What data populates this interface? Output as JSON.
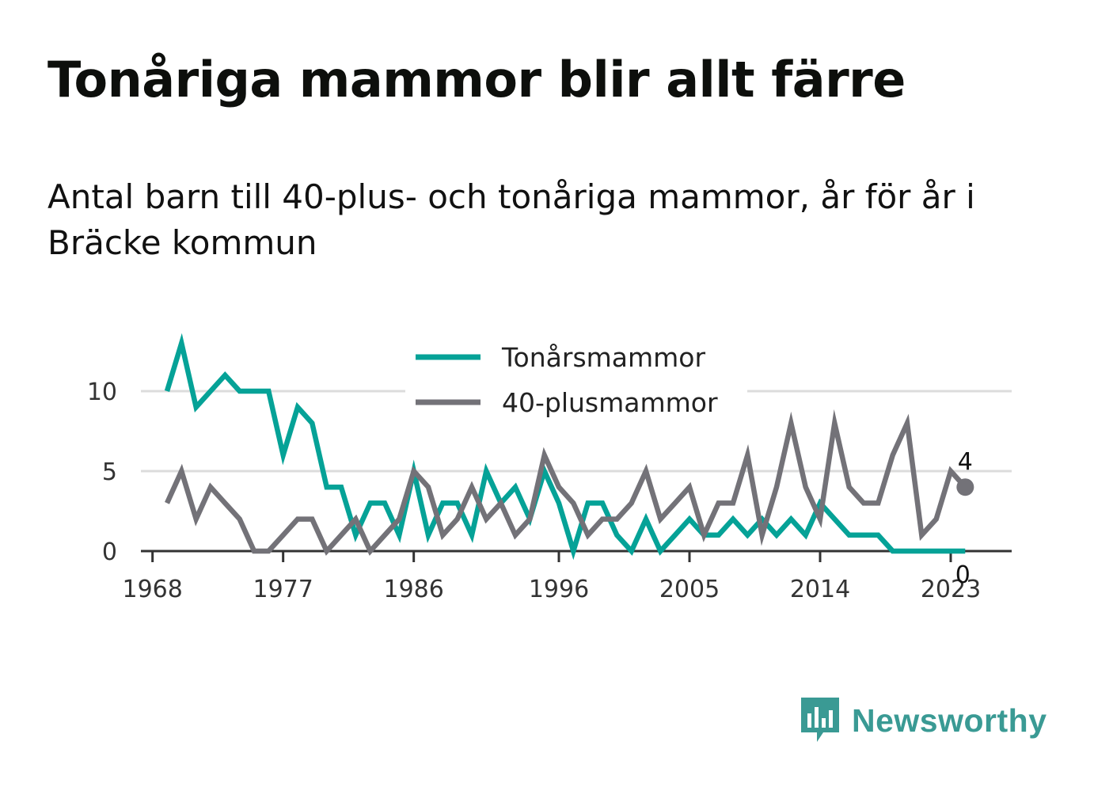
{
  "header": {
    "title": "Tonåriga mammor blir allt färre",
    "subtitle": "Antal barn till 40-plus- och tonåriga mammor, år för år i Bräcke kommun"
  },
  "brand": {
    "name": "Newsworthy",
    "color": "#3a9a94",
    "icon": "newsworthy-logo-icon"
  },
  "chart_data": {
    "type": "line",
    "x": [
      1969,
      1970,
      1971,
      1972,
      1973,
      1974,
      1975,
      1976,
      1977,
      1978,
      1979,
      1980,
      1981,
      1982,
      1983,
      1984,
      1985,
      1986,
      1987,
      1988,
      1989,
      1990,
      1991,
      1992,
      1993,
      1994,
      1995,
      1996,
      1997,
      1998,
      1999,
      2000,
      2001,
      2002,
      2003,
      2004,
      2005,
      2006,
      2007,
      2008,
      2009,
      2010,
      2011,
      2012,
      2013,
      2014,
      2015,
      2016,
      2017,
      2018,
      2019,
      2020,
      2021,
      2022,
      2023,
      2024
    ],
    "series": [
      {
        "name": "Tonårsmammor",
        "color": "#05a297",
        "values": [
          10,
          13,
          9,
          10,
          11,
          10,
          10,
          10,
          6,
          9,
          8,
          4,
          4,
          1,
          3,
          3,
          1,
          5,
          1,
          3,
          3,
          1,
          5,
          3,
          4,
          2,
          5,
          3,
          0,
          3,
          3,
          1,
          0,
          2,
          0,
          1,
          2,
          1,
          1,
          2,
          1,
          2,
          1,
          2,
          1,
          3,
          2,
          1,
          1,
          1,
          0,
          0,
          0,
          0,
          0,
          0
        ]
      },
      {
        "name": "40-plusmammor",
        "color": "#737278",
        "values": [
          3,
          5,
          2,
          4,
          3,
          2,
          0,
          0,
          1,
          2,
          2,
          0,
          1,
          2,
          0,
          1,
          2,
          5,
          4,
          1,
          2,
          4,
          2,
          3,
          1,
          2,
          6,
          4,
          3,
          1,
          2,
          2,
          3,
          5,
          2,
          3,
          4,
          1,
          3,
          3,
          6,
          1,
          4,
          8,
          4,
          2,
          8,
          4,
          3,
          3,
          6,
          8,
          1,
          2,
          5,
          4
        ]
      }
    ],
    "x_ticks": [
      1968,
      1977,
      1986,
      1996,
      2005,
      2014,
      2023
    ],
    "x_range": [
      1967.2,
      2027.2
    ],
    "y_ticks": [
      0,
      5,
      10
    ],
    "ylim": [
      0,
      13
    ],
    "grid": true,
    "legend_position": "top-center",
    "end_labels": [
      {
        "series": "40-plusmammor",
        "text": "4"
      },
      {
        "series": "Tonårsmammor",
        "text": "0"
      }
    ]
  }
}
